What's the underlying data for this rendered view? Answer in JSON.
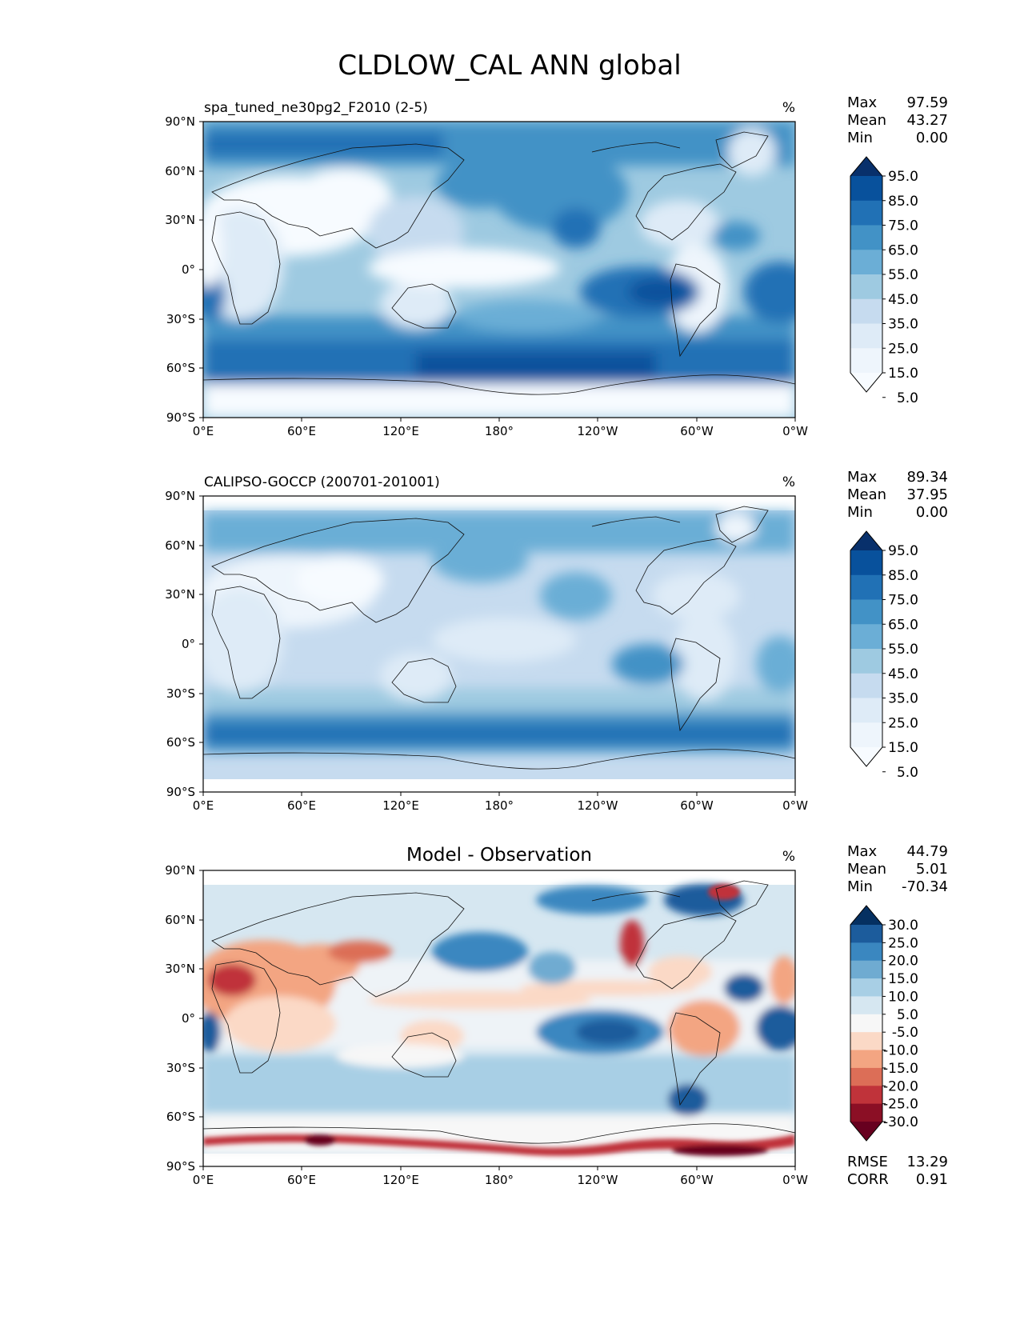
{
  "figure_title": "CLDLOW_CAL ANN global",
  "chart_data": [
    {
      "type": "heatmap",
      "title": "spa_tuned_ne30pg2_F2010 (2-5)",
      "units": "%",
      "lat_ticks": [
        "90°N",
        "60°N",
        "30°N",
        "0°",
        "30°S",
        "60°S",
        "90°S"
      ],
      "lon_ticks": [
        "0°E",
        "60°E",
        "120°E",
        "180°",
        "120°W",
        "60°W",
        "0°W"
      ],
      "stats": [
        {
          "label": "Max",
          "value": "97.59"
        },
        {
          "label": "Mean",
          "value": "43.27"
        },
        {
          "label": "Min",
          "value": "0.00"
        }
      ],
      "colorbar": {
        "labels": [
          "95.0",
          "85.0",
          "75.0",
          "65.0",
          "55.0",
          "45.0",
          "35.0",
          "25.0",
          "15.0",
          "5.0"
        ],
        "colors": [
          "#08306b",
          "#08519c",
          "#2171b5",
          "#4292c6",
          "#6baed6",
          "#9ecae1",
          "#c6dbef",
          "#deebf7",
          "#eef5fc",
          "#f7fbff"
        ]
      }
    },
    {
      "type": "heatmap",
      "title": "CALIPSO-GOCCP (200701-201001)",
      "units": "%",
      "lat_ticks": [
        "90°N",
        "60°N",
        "30°N",
        "0°",
        "30°S",
        "60°S",
        "90°S"
      ],
      "lon_ticks": [
        "0°E",
        "60°E",
        "120°E",
        "180°",
        "120°W",
        "60°W",
        "0°W"
      ],
      "stats": [
        {
          "label": "Max",
          "value": "89.34"
        },
        {
          "label": "Mean",
          "value": "37.95"
        },
        {
          "label": "Min",
          "value": "0.00"
        }
      ],
      "colorbar": {
        "labels": [
          "95.0",
          "85.0",
          "75.0",
          "65.0",
          "55.0",
          "45.0",
          "35.0",
          "25.0",
          "15.0",
          "5.0"
        ],
        "colors": [
          "#08306b",
          "#08519c",
          "#2171b5",
          "#4292c6",
          "#6baed6",
          "#9ecae1",
          "#c6dbef",
          "#deebf7",
          "#eef5fc",
          "#f7fbff"
        ]
      }
    },
    {
      "type": "heatmap",
      "title": "Model - Observation",
      "units": "%",
      "lat_ticks": [
        "90°N",
        "60°N",
        "30°N",
        "0°",
        "30°S",
        "60°S",
        "90°S"
      ],
      "lon_ticks": [
        "0°E",
        "60°E",
        "120°E",
        "180°",
        "120°W",
        "60°W",
        "0°W"
      ],
      "stats": [
        {
          "label": "Max",
          "value": "44.79"
        },
        {
          "label": "Mean",
          "value": "5.01"
        },
        {
          "label": "Min",
          "value": "-70.34"
        }
      ],
      "colorbar": {
        "labels": [
          "30.0",
          "25.0",
          "20.0",
          "15.0",
          "10.0",
          "5.0",
          "-5.0",
          "-10.0",
          "-15.0",
          "-20.0",
          "-25.0",
          "-30.0"
        ],
        "colors": [
          "#053061",
          "#1c5c9c",
          "#3a87c0",
          "#6fabd1",
          "#a8cfe5",
          "#d6e7f1",
          "#f7f7f7",
          "#fbd9c6",
          "#f3a582",
          "#dc6e57",
          "#c0333a",
          "#8b0f25",
          "#67001f"
        ]
      },
      "metrics": [
        {
          "label": "RMSE",
          "value": "13.29"
        },
        {
          "label": "CORR",
          "value": "0.91"
        }
      ]
    }
  ]
}
